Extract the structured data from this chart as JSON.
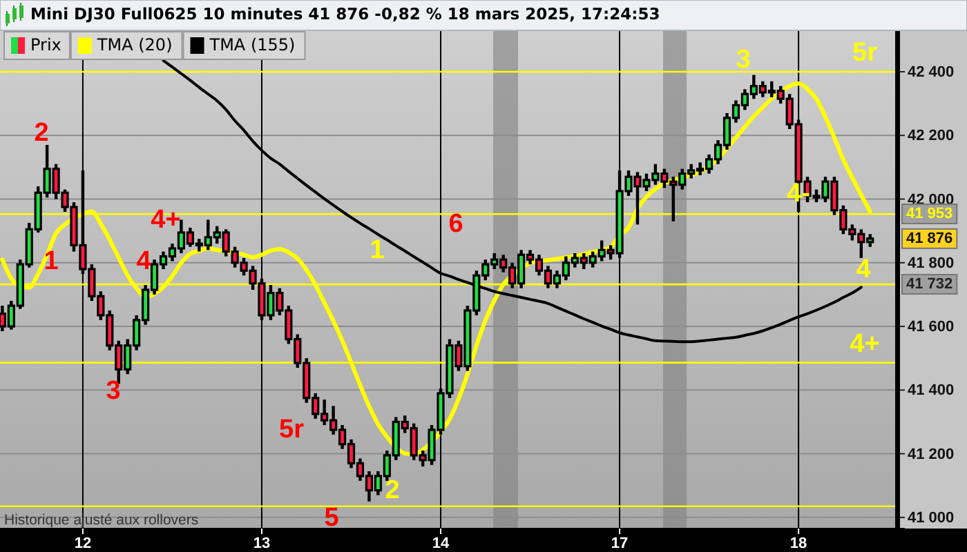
{
  "chart_data": {
    "type": "candlestick",
    "title": "Mini DJ30 Full0625 10 minutes 41 876 -0,82 % 18 mars 2025, 17:24:53",
    "categories": [
      null,
      null,
      null,
      null,
      null,
      null,
      null,
      null,
      null,
      "12",
      null,
      null,
      null,
      null,
      null,
      null,
      null,
      null,
      null,
      null,
      null,
      null,
      null,
      null,
      null,
      null,
      null,
      null,
      null,
      "13",
      null,
      null,
      null,
      null,
      null,
      null,
      null,
      null,
      null,
      null,
      null,
      null,
      null,
      null,
      null,
      null,
      null,
      null,
      null,
      "14",
      null,
      null,
      null,
      null,
      null,
      null,
      null,
      null,
      null,
      null,
      null,
      null,
      null,
      null,
      null,
      null,
      null,
      null,
      null,
      "17",
      null,
      null,
      null,
      null,
      null,
      null,
      null,
      null,
      null,
      null,
      null,
      null,
      null,
      null,
      null,
      null,
      null,
      null,
      null,
      "18",
      null,
      null,
      null,
      null,
      null,
      null,
      null,
      null
    ],
    "ylim": [
      40965,
      42530
    ],
    "yticks": [
      {
        "value": 41000,
        "label": "41 000"
      },
      {
        "value": 41200,
        "label": "41 200"
      },
      {
        "value": 41400,
        "label": "41 400"
      },
      {
        "value": 41600,
        "label": "41 600"
      },
      {
        "value": 41800,
        "label": "41 800"
      },
      {
        "value": 42000,
        "label": "42 000"
      },
      {
        "value": 42200,
        "label": "42 200"
      },
      {
        "value": 42400,
        "label": "42 400"
      }
    ],
    "grid": true,
    "legend": "top left",
    "series": [
      {
        "name": "Prix",
        "ohlc": [
          [
            41640,
            41665,
            41585,
            41600
          ],
          [
            41600,
            41680,
            41590,
            41665
          ],
          [
            41665,
            41810,
            41655,
            41795
          ],
          [
            41795,
            41925,
            41785,
            41905
          ],
          [
            41905,
            42040,
            41895,
            42020
          ],
          [
            42020,
            42170,
            42005,
            42095
          ],
          [
            42095,
            42110,
            42000,
            42020
          ],
          [
            42020,
            42030,
            41960,
            41975
          ],
          [
            41975,
            41990,
            41835,
            41855
          ],
          [
            41855,
            42090,
            41765,
            41780
          ],
          [
            41780,
            41795,
            41680,
            41695
          ],
          [
            41695,
            41710,
            41620,
            41635
          ],
          [
            41635,
            41650,
            41525,
            41540
          ],
          [
            41540,
            41555,
            41420,
            41465
          ],
          [
            41465,
            41560,
            41450,
            41540
          ],
          [
            41540,
            41635,
            41525,
            41620
          ],
          [
            41620,
            41730,
            41605,
            41715
          ],
          [
            41715,
            41810,
            41700,
            41795
          ],
          [
            41795,
            41835,
            41780,
            41820
          ],
          [
            41820,
            41860,
            41805,
            41845
          ],
          [
            41845,
            41935,
            41830,
            41895
          ],
          [
            41895,
            41910,
            41850,
            41860
          ],
          [
            41860,
            41875,
            41835,
            41855
          ],
          [
            41855,
            41935,
            41840,
            41880
          ],
          [
            41880,
            41915,
            41860,
            41895
          ],
          [
            41895,
            41905,
            41820,
            41835
          ],
          [
            41835,
            41850,
            41785,
            41800
          ],
          [
            41800,
            41815,
            41760,
            41775
          ],
          [
            41775,
            41790,
            41715,
            41735
          ],
          [
            41735,
            41750,
            41620,
            41635
          ],
          [
            41635,
            41730,
            41620,
            41705
          ],
          [
            41705,
            41720,
            41635,
            41650
          ],
          [
            41650,
            41665,
            41545,
            41560
          ],
          [
            41560,
            41575,
            41470,
            41485
          ],
          [
            41485,
            41500,
            41360,
            41375
          ],
          [
            41375,
            41390,
            41310,
            41325
          ],
          [
            41325,
            41370,
            41290,
            41305
          ],
          [
            41305,
            41350,
            41260,
            41275
          ],
          [
            41275,
            41290,
            41215,
            41230
          ],
          [
            41230,
            41245,
            41155,
            41170
          ],
          [
            41170,
            41185,
            41115,
            41130
          ],
          [
            41130,
            41145,
            41050,
            41085
          ],
          [
            41085,
            41145,
            41070,
            41130
          ],
          [
            41130,
            41210,
            41115,
            41195
          ],
          [
            41195,
            41315,
            41180,
            41300
          ],
          [
            41300,
            41320,
            41265,
            41280
          ],
          [
            41280,
            41295,
            41180,
            41195
          ],
          [
            41195,
            41210,
            41160,
            41180
          ],
          [
            41180,
            41290,
            41165,
            41275
          ],
          [
            41275,
            41405,
            41260,
            41390
          ],
          [
            41390,
            41560,
            41375,
            41540
          ],
          [
            41540,
            41555,
            41460,
            41475
          ],
          [
            41475,
            41665,
            41460,
            41650
          ],
          [
            41650,
            41775,
            41635,
            41760
          ],
          [
            41760,
            41810,
            41745,
            41795
          ],
          [
            41795,
            41830,
            41780,
            41810
          ],
          [
            41810,
            41825,
            41770,
            41785
          ],
          [
            41785,
            41800,
            41720,
            41735
          ],
          [
            41735,
            41840,
            41720,
            41825
          ],
          [
            41825,
            41840,
            41795,
            41810
          ],
          [
            41810,
            41825,
            41760,
            41775
          ],
          [
            41775,
            41790,
            41720,
            41735
          ],
          [
            41735,
            41775,
            41720,
            41760
          ],
          [
            41760,
            41820,
            41745,
            41800
          ],
          [
            41800,
            41830,
            41785,
            41815
          ],
          [
            41815,
            41830,
            41780,
            41800
          ],
          [
            41800,
            41835,
            41785,
            41820
          ],
          [
            41820,
            41870,
            41805,
            41840
          ],
          [
            41840,
            41855,
            41810,
            41830
          ],
          [
            41830,
            42090,
            41815,
            42025
          ],
          [
            42025,
            42090,
            42010,
            42070
          ],
          [
            42070,
            42085,
            41920,
            42040
          ],
          [
            42040,
            42080,
            42025,
            42060
          ],
          [
            42060,
            42110,
            42045,
            42080
          ],
          [
            42080,
            42095,
            42035,
            42055
          ],
          [
            42055,
            42070,
            41930,
            42045
          ],
          [
            42045,
            42095,
            42030,
            42080
          ],
          [
            42080,
            42110,
            42065,
            42090
          ],
          [
            42090,
            42115,
            42075,
            42095
          ],
          [
            42095,
            42140,
            42080,
            42125
          ],
          [
            42125,
            42185,
            42110,
            42170
          ],
          [
            42170,
            42270,
            42155,
            42255
          ],
          [
            42255,
            42310,
            42240,
            42295
          ],
          [
            42295,
            42345,
            42280,
            42330
          ],
          [
            42330,
            42390,
            42315,
            42355
          ],
          [
            42355,
            42370,
            42320,
            42335
          ],
          [
            42335,
            42370,
            42320,
            42340
          ],
          [
            42340,
            42355,
            42300,
            42315
          ],
          [
            42315,
            42330,
            42220,
            42235
          ],
          [
            42235,
            42250,
            41960,
            42055
          ],
          [
            42055,
            42070,
            41990,
            42010
          ],
          [
            42010,
            42030,
            41990,
            42005
          ],
          [
            42005,
            42070,
            41990,
            42055
          ],
          [
            42055,
            42070,
            41950,
            41965
          ],
          [
            41965,
            41980,
            41890,
            41905
          ],
          [
            41905,
            41920,
            41870,
            41890
          ],
          [
            41890,
            41905,
            41815,
            41865
          ],
          [
            41865,
            41890,
            41850,
            41876
          ]
        ]
      },
      {
        "name": "TMA (20)",
        "type": "line",
        "color": "#ffff00",
        "values": [
          41810,
          41750,
          41727,
          41722,
          41765,
          41825,
          41892,
          41920,
          41940,
          41953,
          41961,
          41923,
          41872,
          41816,
          41760,
          41720,
          41693,
          41702,
          41724,
          41758,
          41800,
          41828,
          41837,
          41845,
          41840,
          41836,
          41832,
          41825,
          41817,
          41825,
          41838,
          41843,
          41833,
          41813,
          41777,
          41730,
          41674,
          41617,
          41555,
          41486,
          41415,
          41349,
          41293,
          41253,
          41220,
          41201,
          41198,
          41212,
          41237,
          41270,
          41309,
          41372,
          41450,
          41540,
          41619,
          41681,
          41732,
          41760,
          41782,
          41799,
          41805,
          41808,
          41812,
          41817,
          41821,
          41827,
          41834,
          41840,
          41849,
          41886,
          41910,
          41970,
          42007,
          42032,
          42050,
          42059,
          42067,
          42076,
          42086,
          42104,
          42126,
          42159,
          42193,
          42227,
          42260,
          42288,
          42316,
          42336,
          42355,
          42363,
          42346,
          42314,
          42258,
          42193,
          42124,
          42067,
          42013,
          41960
        ]
      },
      {
        "name": "TMA (155)",
        "type": "line",
        "color": "#000000",
        "values": [
          null,
          null,
          null,
          null,
          null,
          null,
          null,
          null,
          null,
          null,
          null,
          null,
          null,
          null,
          null,
          null,
          null,
          null,
          42435,
          42415,
          42394,
          42373,
          42351,
          42330,
          42309,
          42281,
          42246,
          42216,
          42182,
          42153,
          42128,
          42110,
          42087,
          42065,
          42043,
          42022,
          42001,
          41981,
          41961,
          41942,
          41924,
          41907,
          41889,
          41872,
          41854,
          41837,
          41819,
          41802,
          41784,
          41767,
          41758,
          41747,
          41738,
          41728,
          41719,
          41710,
          41703,
          41697,
          41691,
          41685,
          41679,
          41672,
          41660,
          41648,
          41636,
          41624,
          41613,
          41601,
          41591,
          41580,
          41573,
          41567,
          41561,
          41555,
          41554,
          41553,
          41552,
          41552,
          41554,
          41557,
          41560,
          41563,
          41566,
          41572,
          41578,
          41586,
          41596,
          41607,
          41619,
          41630,
          41640,
          41651,
          41663,
          41676,
          41691,
          41705,
          41723,
          null
        ]
      }
    ],
    "ref_lines": [
      {
        "axis": "y",
        "value": 42400,
        "color": "#ffff00"
      },
      {
        "axis": "y",
        "value": 41953,
        "label": "41 953",
        "color": "#ffff00"
      },
      {
        "axis": "y",
        "value": 41732,
        "label": "41 732",
        "color": "#ffff00"
      },
      {
        "axis": "y",
        "value": 41486,
        "color": "#ffff00"
      },
      {
        "axis": "y",
        "value": 41035,
        "color": "#ffff00"
      }
    ],
    "annotations": [
      "Historique ajusté aux rollovers",
      "41 876",
      "2",
      "1",
      "4+",
      "4",
      "3",
      "5r",
      "5",
      "6",
      "1",
      "2",
      "3",
      "5r",
      "4-",
      "4",
      "4+"
    ]
  }
}
